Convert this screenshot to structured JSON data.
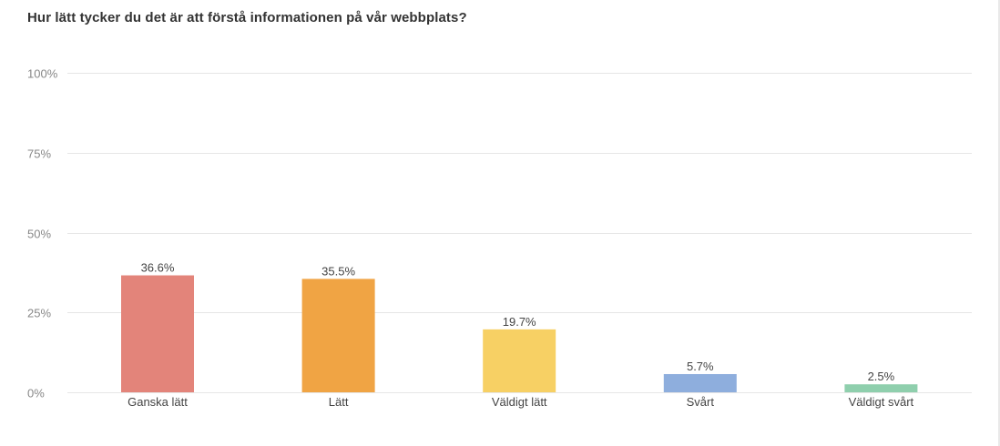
{
  "chart_data": {
    "type": "bar",
    "title": "Hur lätt tycker du det är att förstå informationen på vår webbplats?",
    "categories": [
      "Ganska lätt",
      "Lätt",
      "Väldigt lätt",
      "Svårt",
      "Väldigt svårt"
    ],
    "values": [
      36.6,
      35.5,
      19.7,
      5.7,
      2.5
    ],
    "value_labels": [
      "36.6%",
      "35.5%",
      "19.7%",
      "5.7%",
      "2.5%"
    ],
    "colors": [
      "#e3847a",
      "#f0a444",
      "#f7d064",
      "#8eaedd",
      "#8fcfad"
    ],
    "yticks": [
      0,
      25,
      50,
      75,
      100
    ],
    "ytick_labels": [
      "0%",
      "25%",
      "50%",
      "75%",
      "100%"
    ],
    "ylim": [
      0,
      100
    ],
    "xlabel": "",
    "ylabel": "",
    "grid": true
  }
}
